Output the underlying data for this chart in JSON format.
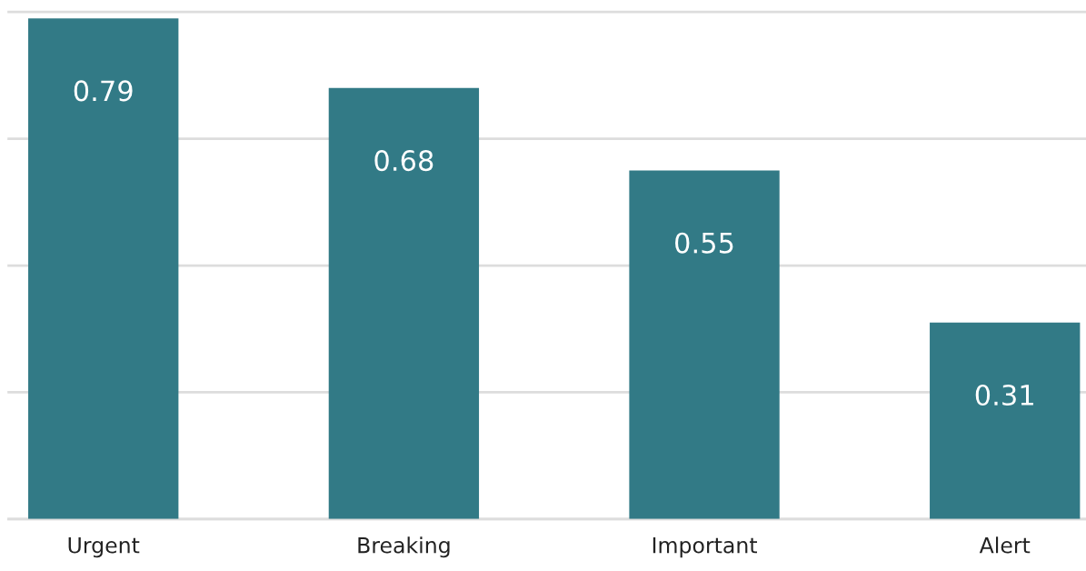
{
  "chart_data": {
    "type": "bar",
    "categories": [
      "Urgent",
      "Breaking",
      "Important",
      "Alert"
    ],
    "values": [
      0.79,
      0.68,
      0.55,
      0.31
    ],
    "color": "#327a86",
    "data_labels": true,
    "ylim": [
      0,
      0.8
    ],
    "yticks": [
      {
        "value": 0,
        "label": null
      },
      {
        "value": 0.2,
        "label": null
      },
      {
        "value": 0.4,
        "label": null
      },
      {
        "value": 0.6,
        "label": null
      },
      {
        "value": 0.8,
        "label": null
      }
    ],
    "tick_labels": "x",
    "grid": "y"
  }
}
